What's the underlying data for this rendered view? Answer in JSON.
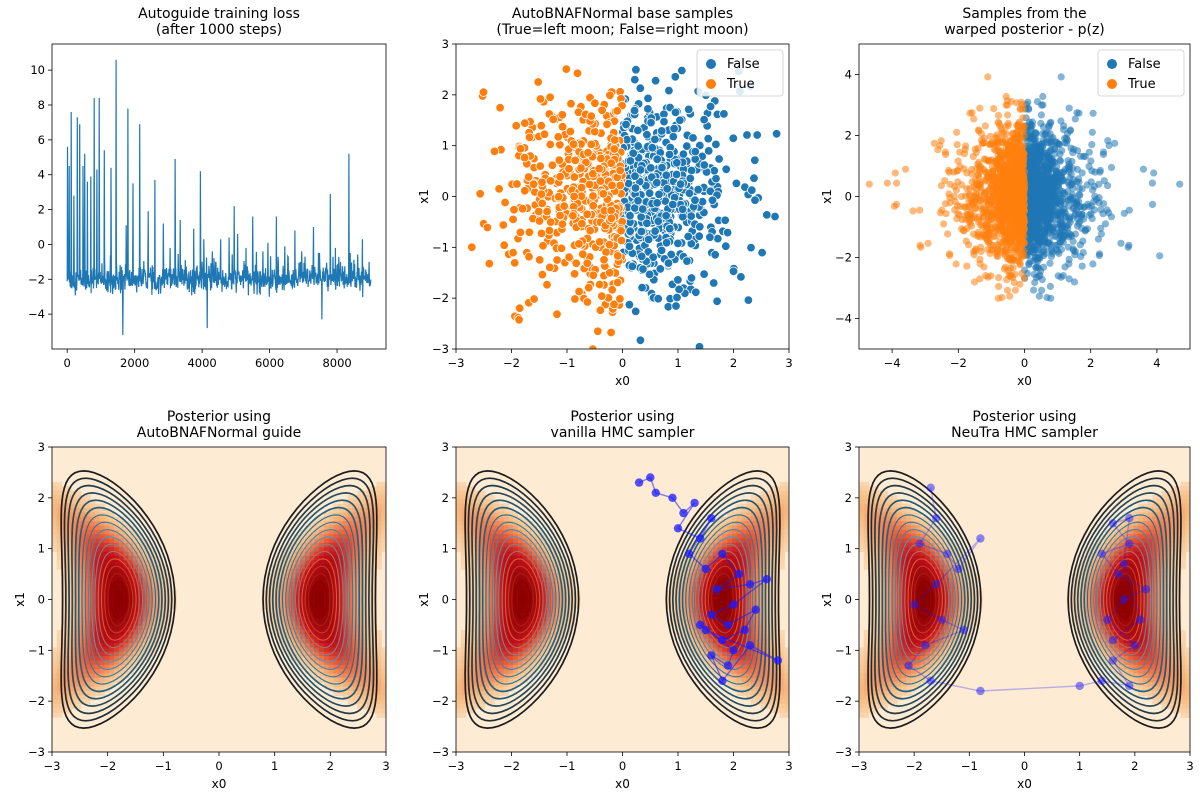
{
  "figure": {
    "background": "#ffffff"
  },
  "chart_data": [
    {
      "type": "line",
      "title": "Autoguide training loss\n(after 1000 steps)",
      "xlabel": "",
      "ylabel": "",
      "xlim": [
        -450,
        9450
      ],
      "ylim": [
        -6,
        11.5
      ],
      "xticks": [
        0,
        2000,
        4000,
        6000,
        8000
      ],
      "yticks": [
        -4,
        -2,
        0,
        2,
        4,
        6,
        8,
        10
      ],
      "series": [
        {
          "name": "loss",
          "color": "#1f77b4",
          "n_steps": 9000,
          "baseline": -2.0,
          "noise_range": [
            -3.2,
            -0.9
          ],
          "spikes": [
            [
              10,
              5.6
            ],
            [
              60,
              4.5
            ],
            [
              120,
              7.6
            ],
            [
              200,
              2.8
            ],
            [
              300,
              7.3
            ],
            [
              370,
              6.9
            ],
            [
              470,
              4.5
            ],
            [
              520,
              5.2
            ],
            [
              600,
              3.6
            ],
            [
              700,
              3.9
            ],
            [
              800,
              8.4
            ],
            [
              880,
              4.3
            ],
            [
              950,
              8.4
            ],
            [
              1100,
              5.4
            ],
            [
              1300,
              4.4
            ],
            [
              1450,
              10.6
            ],
            [
              1650,
              -5.2
            ],
            [
              1750,
              1.1
            ],
            [
              1800,
              7.8
            ],
            [
              1950,
              3.5
            ],
            [
              2150,
              6.9
            ],
            [
              2400,
              1.9
            ],
            [
              2600,
              3.7
            ],
            [
              2850,
              1.2
            ],
            [
              3050,
              -0.2
            ],
            [
              3200,
              4.9
            ],
            [
              3350,
              1.4
            ],
            [
              3500,
              -0.9
            ],
            [
              3750,
              0.9
            ],
            [
              3950,
              4.2
            ],
            [
              4050,
              0.3
            ],
            [
              4150,
              -4.8
            ],
            [
              4300,
              -0.4
            ],
            [
              4550,
              0.3
            ],
            [
              4800,
              0.4
            ],
            [
              4950,
              2.2
            ],
            [
              5050,
              0.6
            ],
            [
              5300,
              -0.2
            ],
            [
              5500,
              1.6
            ],
            [
              5800,
              -0.4
            ],
            [
              5950,
              0.1
            ],
            [
              6200,
              1.6
            ],
            [
              6450,
              -0.1
            ],
            [
              6750,
              0.8
            ],
            [
              6950,
              -0.4
            ],
            [
              7050,
              -0.7
            ],
            [
              7300,
              1.0
            ],
            [
              7550,
              -4.3
            ],
            [
              7800,
              2.9
            ],
            [
              7950,
              -0.2
            ],
            [
              8100,
              -1.0
            ],
            [
              8350,
              5.2
            ],
            [
              8750,
              0.3
            ],
            [
              8950,
              -1.0
            ]
          ]
        }
      ]
    },
    {
      "type": "scatter",
      "title": "AutoBNAFNormal base samples\n(True=left moon; False=right moon)",
      "xlabel": "x0",
      "ylabel": "x1",
      "xlim": [
        -3,
        3
      ],
      "ylim": [
        -3,
        3
      ],
      "xticks": [
        -3,
        -2,
        -1,
        0,
        1,
        2,
        3
      ],
      "yticks": [
        -3,
        -2,
        -1,
        0,
        1,
        2,
        3
      ],
      "legend": {
        "position": "top-right",
        "entries": [
          "False",
          "True"
        ]
      },
      "series": [
        {
          "name": "False",
          "color": "#1f77b4",
          "distribution": "normal-right-half",
          "sd": 1.0,
          "count": 520
        },
        {
          "name": "True",
          "color": "#ff7f0e",
          "distribution": "normal-left-half",
          "sd": 1.0,
          "count": 480
        }
      ]
    },
    {
      "type": "scatter",
      "title": "Samples from the\nwarped posterior - p(z)",
      "xlabel": "x0",
      "ylabel": "x1",
      "xlim": [
        -5,
        5
      ],
      "ylim": [
        -5,
        5
      ],
      "xticks": [
        -4,
        -2,
        0,
        2,
        4
      ],
      "yticks": [
        -4,
        -2,
        0,
        2,
        4
      ],
      "legend": {
        "position": "top-right",
        "entries": [
          "False",
          "True"
        ]
      },
      "series": [
        {
          "name": "False",
          "color": "#1f77b4",
          "distribution": "right-half",
          "center": [
            0.6,
            0
          ],
          "sd": [
            0.9,
            1.1
          ],
          "count": 1300
        },
        {
          "name": "True",
          "color": "#ff7f0e",
          "distribution": "left-half",
          "center": [
            -0.6,
            0
          ],
          "sd": [
            0.9,
            1.1
          ],
          "count": 1300
        }
      ]
    },
    {
      "type": "heatmap",
      "title": "Posterior using\nAutoBNAFNormal guide",
      "xlabel": "x0",
      "ylabel": "x1",
      "xlim": [
        -3,
        3
      ],
      "ylim": [
        -3,
        3
      ],
      "xticks": [
        -3,
        -2,
        -1,
        0,
        1,
        2,
        3
      ],
      "yticks": [
        -3,
        -2,
        -1,
        0,
        1,
        2,
        3
      ],
      "colormap": [
        "#fdebd4",
        "#f6bd85",
        "#ef6c42",
        "#c0121e",
        "#8b0000"
      ],
      "contour_colormap": [
        "#1c1c1c",
        "#2a4a5a",
        "#206e92",
        "#4a98ba",
        "#e05a32",
        "#8b0000"
      ],
      "density": "two-moons",
      "moon_centers": [
        -1.8,
        1.8
      ],
      "trace": null
    },
    {
      "type": "heatmap",
      "title": "Posterior using\nvanilla HMC sampler",
      "xlabel": "x0",
      "ylabel": "x1",
      "xlim": [
        -3,
        3
      ],
      "ylim": [
        -3,
        3
      ],
      "xticks": [
        -3,
        -2,
        -1,
        0,
        1,
        2,
        3
      ],
      "yticks": [
        -3,
        -2,
        -1,
        0,
        1,
        2,
        3
      ],
      "colormap": [
        "#fdebd4",
        "#f6bd85",
        "#ef6c42",
        "#c0121e",
        "#8b0000"
      ],
      "contour_colormap": [
        "#1c1c1c",
        "#2a4a5a",
        "#206e92",
        "#4a98ba",
        "#e05a32",
        "#8b0000"
      ],
      "density": "two-moons",
      "moon_centers": [
        -1.8,
        1.8
      ],
      "trace": {
        "color": "#1a1aff",
        "alpha": 0.55,
        "points": [
          [
            0.3,
            2.3
          ],
          [
            0.5,
            2.4
          ],
          [
            0.6,
            2.1
          ],
          [
            0.9,
            2.0
          ],
          [
            1.1,
            1.7
          ],
          [
            1.3,
            1.9
          ],
          [
            1.0,
            1.4
          ],
          [
            1.4,
            1.2
          ],
          [
            1.6,
            1.6
          ],
          [
            1.2,
            0.9
          ],
          [
            1.5,
            0.6
          ],
          [
            1.8,
            0.9
          ],
          [
            2.1,
            0.5
          ],
          [
            1.7,
            0.2
          ],
          [
            2.3,
            0.3
          ],
          [
            2.6,
            0.4
          ],
          [
            2.0,
            -0.1
          ],
          [
            1.6,
            -0.3
          ],
          [
            1.9,
            -0.5
          ],
          [
            2.4,
            -0.2
          ],
          [
            2.2,
            -0.6
          ],
          [
            1.8,
            -0.8
          ],
          [
            1.4,
            -0.5
          ],
          [
            2.0,
            -1.0
          ],
          [
            1.9,
            -1.3
          ],
          [
            1.6,
            -1.1
          ],
          [
            1.8,
            -1.6
          ],
          [
            2.3,
            -0.9
          ],
          [
            2.8,
            -1.2
          ],
          [
            1.5,
            -0.6
          ]
        ]
      }
    },
    {
      "type": "heatmap",
      "title": "Posterior using\nNeuTra HMC sampler",
      "xlabel": "x0",
      "ylabel": "x1",
      "xlim": [
        -3,
        3
      ],
      "ylim": [
        -3,
        3
      ],
      "xticks": [
        -3,
        -2,
        -1,
        0,
        1,
        2,
        3
      ],
      "yticks": [
        -3,
        -2,
        -1,
        0,
        1,
        2,
        3
      ],
      "colormap": [
        "#fdebd4",
        "#f6bd85",
        "#ef6c42",
        "#c0121e",
        "#8b0000"
      ],
      "contour_colormap": [
        "#1c1c1c",
        "#2a4a5a",
        "#206e92",
        "#4a98ba",
        "#e05a32",
        "#8b0000"
      ],
      "density": "two-moons",
      "moon_centers": [
        -1.8,
        1.8
      ],
      "trace": {
        "color": "#1a1aff",
        "alpha": 0.3,
        "points": [
          [
            -1.7,
            2.2
          ],
          [
            -1.6,
            1.6
          ],
          [
            -1.9,
            1.1
          ],
          [
            -1.4,
            0.9
          ],
          [
            -1.2,
            0.6
          ],
          [
            -0.8,
            1.2
          ],
          [
            -1.6,
            0.3
          ],
          [
            -2.0,
            -0.1
          ],
          [
            -1.5,
            -0.4
          ],
          [
            -1.1,
            -0.6
          ],
          [
            -1.8,
            -0.9
          ],
          [
            -2.1,
            -1.3
          ],
          [
            -1.7,
            -1.6
          ],
          [
            -0.8,
            -1.8
          ],
          [
            1.0,
            -1.7
          ],
          [
            1.4,
            -1.6
          ],
          [
            1.9,
            -1.7
          ],
          [
            1.6,
            -1.2
          ],
          [
            2.0,
            -0.9
          ],
          [
            1.5,
            -0.4
          ],
          [
            1.8,
            0.0
          ],
          [
            2.2,
            0.2
          ],
          [
            1.7,
            0.5
          ],
          [
            1.4,
            0.9
          ],
          [
            1.9,
            1.1
          ],
          [
            1.6,
            1.5
          ],
          [
            1.9,
            1.6
          ],
          [
            1.8,
            0.7
          ],
          [
            2.1,
            -0.4
          ],
          [
            1.6,
            -0.8
          ]
        ]
      }
    }
  ]
}
